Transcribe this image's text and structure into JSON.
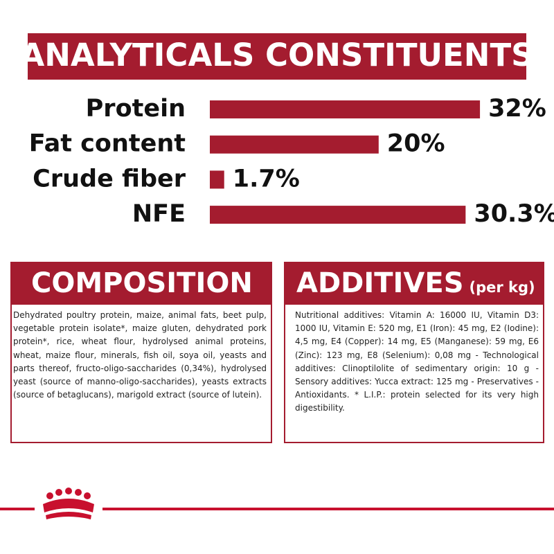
{
  "header": {
    "title": "ANALYTICALS CONSTITUENTS"
  },
  "chart_data": {
    "type": "bar",
    "orientation": "horizontal",
    "categories": [
      "Protein",
      "Fat content",
      "Crude fiber",
      "NFE"
    ],
    "values": [
      32,
      20,
      1.7,
      30.3
    ],
    "value_labels": [
      "32%",
      "20%",
      "1.7%",
      "30.3%"
    ],
    "color": "#a41c2f"
  },
  "composition": {
    "title": "COMPOSITION",
    "text": "Dehydrated poultry protein, maize, animal fats, beet pulp, vegetable protein isolate*, maize gluten, dehydrated pork protein*, rice, wheat flour, hydrolysed animal proteins, wheat, maize flour, minerals, fish oil, soya oil, yeasts and parts thereof, fructo-oligo-saccharides (0,34%), hydrolysed yeast (source of manno-oligo-saccharides), yeasts extracts (source of betaglucans), marigold extract (source of lutein)."
  },
  "additives": {
    "title": "ADDITIVES",
    "unit": "(per kg)",
    "text": "Nutritional additives: Vitamin A: 16000 IU, Vitamin D3: 1000 IU, Vitamin E: 520 mg, E1 (Iron): 45 mg, E2 (Iodine): 4,5 mg, E4 (Copper): 14 mg, E5 (Manganese): 59 mg, E6 (Zinc): 123 mg, E8 (Selenium): 0,08 mg - Technological additives: Clinoptilolite of sedimentary origin: 10 g - Sensory additives: Yucca extract: 125 mg - Preservatives - Antioxidants. * L.I.P.: protein selected for its very high digestibility."
  }
}
